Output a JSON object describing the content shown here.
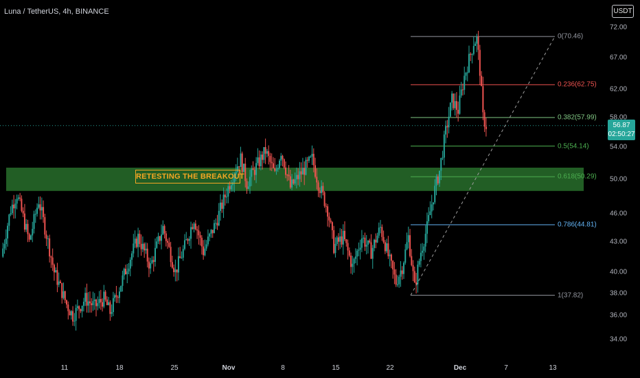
{
  "header": {
    "symbol_title": "Luna / TetherUS, 4h, BINANCE",
    "currency": "USDT"
  },
  "price_box": {
    "price": "56.87",
    "countdown": "02:50:27",
    "color": "#26a69a"
  },
  "colors": {
    "up": "#26a69a",
    "down": "#ef5350",
    "zone": "#2e7d32",
    "annotation": "#f5a623"
  },
  "chart_data": {
    "type": "candlestick",
    "title": "Luna / TetherUS, 4h, BINANCE",
    "y_scale": "log",
    "y_ticks": [
      "72.00",
      "67.00",
      "62.00",
      "58.00",
      "54.00",
      "50.00",
      "46.00",
      "43.00",
      "40.00",
      "38.00",
      "36.00",
      "34.00"
    ],
    "y_tick_values": [
      72,
      67,
      62,
      58,
      54,
      50,
      46,
      43,
      40,
      38,
      36,
      34
    ],
    "x_ticks": [
      {
        "label": "11",
        "bold": false
      },
      {
        "label": "18",
        "bold": false
      },
      {
        "label": "25",
        "bold": false
      },
      {
        "label": "Nov",
        "bold": true
      },
      {
        "label": "8",
        "bold": false
      },
      {
        "label": "15",
        "bold": false
      },
      {
        "label": "22",
        "bold": false
      },
      {
        "label": "Dec",
        "bold": true
      },
      {
        "label": "7",
        "bold": false
      },
      {
        "label": "13",
        "bold": false
      }
    ],
    "last_price": 56.87,
    "fib_levels": [
      {
        "label": "0(70.46)",
        "value": 70.46,
        "color": "#9598a1"
      },
      {
        "label": "0.236(62.75)",
        "value": 62.75,
        "color": "#ef5350"
      },
      {
        "label": "0.382(57.99)",
        "value": 57.99,
        "color": "#81c784"
      },
      {
        "label": "0.5(54.14)",
        "value": 54.14,
        "color": "#4caf50"
      },
      {
        "label": "0.618(50.29)",
        "value": 50.29,
        "color": "#4caf50"
      },
      {
        "label": "0.786(44.81)",
        "value": 44.81,
        "color": "#64b5f6"
      },
      {
        "label": "1(37.82)",
        "value": 37.82,
        "color": "#9598a1"
      }
    ],
    "zone": {
      "low": 48.6,
      "high": 51.4
    },
    "annotation": "RETESTING THE BREAKOUT",
    "price_path": [
      {
        "x": 0.0,
        "y": 41.5
      },
      {
        "x": 1.5,
        "y": 46.5
      },
      {
        "x": 2.5,
        "y": 48.2
      },
      {
        "x": 4.5,
        "y": 43.0
      },
      {
        "x": 6.0,
        "y": 47.5
      },
      {
        "x": 8.5,
        "y": 40.0
      },
      {
        "x": 10.5,
        "y": 37.0
      },
      {
        "x": 11.5,
        "y": 36.0
      },
      {
        "x": 13.5,
        "y": 37.5
      },
      {
        "x": 15.0,
        "y": 36.8
      },
      {
        "x": 16.5,
        "y": 37.5
      },
      {
        "x": 17.5,
        "y": 36.3
      },
      {
        "x": 19.0,
        "y": 38.5
      },
      {
        "x": 20.5,
        "y": 41.0
      },
      {
        "x": 22.0,
        "y": 43.5
      },
      {
        "x": 24.0,
        "y": 40.5
      },
      {
        "x": 26.0,
        "y": 44.5
      },
      {
        "x": 28.0,
        "y": 40.0
      },
      {
        "x": 29.5,
        "y": 42.5
      },
      {
        "x": 31.0,
        "y": 45.5
      },
      {
        "x": 32.5,
        "y": 42.0
      },
      {
        "x": 34.5,
        "y": 45.0
      },
      {
        "x": 36.0,
        "y": 48.0
      },
      {
        "x": 37.5,
        "y": 51.0
      },
      {
        "x": 38.5,
        "y": 52.5
      },
      {
        "x": 39.5,
        "y": 49.5
      },
      {
        "x": 41.0,
        "y": 51.5
      },
      {
        "x": 42.5,
        "y": 53.5
      },
      {
        "x": 44.0,
        "y": 50.5
      },
      {
        "x": 45.0,
        "y": 53.5
      },
      {
        "x": 46.5,
        "y": 49.0
      },
      {
        "x": 47.5,
        "y": 50.0
      },
      {
        "x": 49.0,
        "y": 51.5
      },
      {
        "x": 50.0,
        "y": 52.5
      },
      {
        "x": 51.0,
        "y": 49.5
      },
      {
        "x": 52.5,
        "y": 46.5
      },
      {
        "x": 53.5,
        "y": 42.5
      },
      {
        "x": 55.0,
        "y": 43.5
      },
      {
        "x": 56.5,
        "y": 40.5
      },
      {
        "x": 58.0,
        "y": 43.5
      },
      {
        "x": 59.5,
        "y": 42.0
      },
      {
        "x": 61.0,
        "y": 44.5
      },
      {
        "x": 62.5,
        "y": 41.0
      },
      {
        "x": 63.5,
        "y": 39.0
      },
      {
        "x": 64.5,
        "y": 40.5
      },
      {
        "x": 65.5,
        "y": 43.5
      },
      {
        "x": 66.5,
        "y": 38.5
      },
      {
        "x": 67.5,
        "y": 42.0
      },
      {
        "x": 68.5,
        "y": 44.5
      },
      {
        "x": 69.5,
        "y": 48.0
      },
      {
        "x": 70.5,
        "y": 51.0
      },
      {
        "x": 71.5,
        "y": 56.0
      },
      {
        "x": 72.5,
        "y": 60.5
      },
      {
        "x": 73.5,
        "y": 59.0
      },
      {
        "x": 74.5,
        "y": 64.0
      },
      {
        "x": 75.5,
        "y": 67.5
      },
      {
        "x": 76.0,
        "y": 69.5
      },
      {
        "x": 76.5,
        "y": 70.0
      },
      {
        "x": 77.0,
        "y": 65.0
      },
      {
        "x": 77.5,
        "y": 58.0
      },
      {
        "x": 78.0,
        "y": 56.87
      }
    ]
  }
}
